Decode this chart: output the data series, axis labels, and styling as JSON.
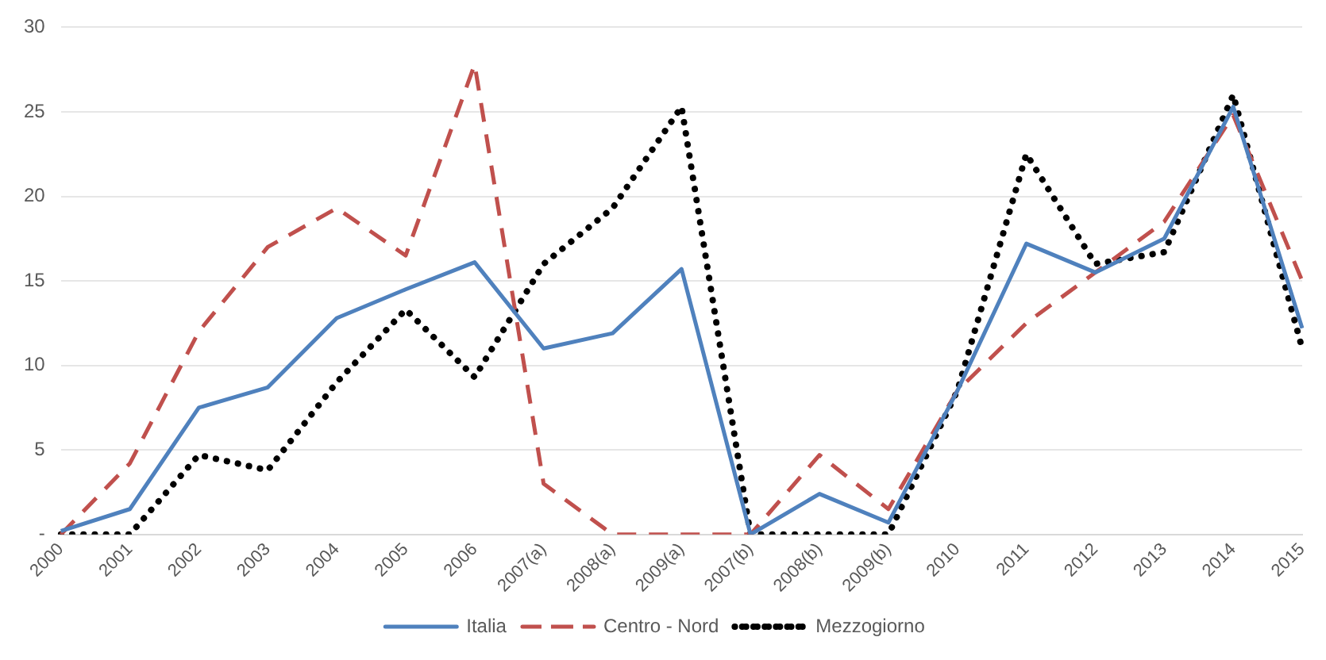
{
  "chart_data": {
    "type": "line",
    "categories": [
      "2000",
      "2001",
      "2002",
      "2003",
      "2004",
      "2005",
      "2006",
      "2007(a)",
      "2008(a)",
      "2009(a)",
      "2007(b)",
      "2008(b)",
      "2009(b)",
      "2010",
      "2011",
      "2012",
      "2013",
      "2014",
      "2015"
    ],
    "series": [
      {
        "name": "Italia",
        "color": "#4f81bd",
        "line_style": "solid",
        "values": [
          0.2,
          1.5,
          7.5,
          8.7,
          12.8,
          14.5,
          16.1,
          11.0,
          11.9,
          15.7,
          0,
          2.4,
          0.7,
          8.5,
          17.2,
          15.5,
          17.5,
          25.3,
          12.2
        ]
      },
      {
        "name": "Centro - Nord",
        "color": "#c0504d",
        "line_style": "dashed",
        "values": [
          0,
          4.2,
          12,
          17,
          19.3,
          16.5,
          27.8,
          3,
          0,
          0,
          0,
          4.7,
          1.5,
          8.5,
          12.5,
          15.5,
          18.5,
          24.8,
          15
        ]
      },
      {
        "name": "Mezzogiorno",
        "color": "#000000",
        "line_style": "dotted",
        "values": [
          0,
          0,
          4.7,
          3.8,
          9,
          13.3,
          9.3,
          16,
          19.3,
          25.3,
          0,
          0,
          0,
          8.5,
          22.5,
          16,
          16.7,
          26,
          11
        ]
      }
    ],
    "ylim": [
      0,
      30
    ],
    "yticks": [
      {
        "value": 0,
        "label": "-"
      },
      5,
      10,
      15,
      20,
      25,
      30
    ],
    "grid": "y",
    "legend": "bottom",
    "marker": "none"
  }
}
